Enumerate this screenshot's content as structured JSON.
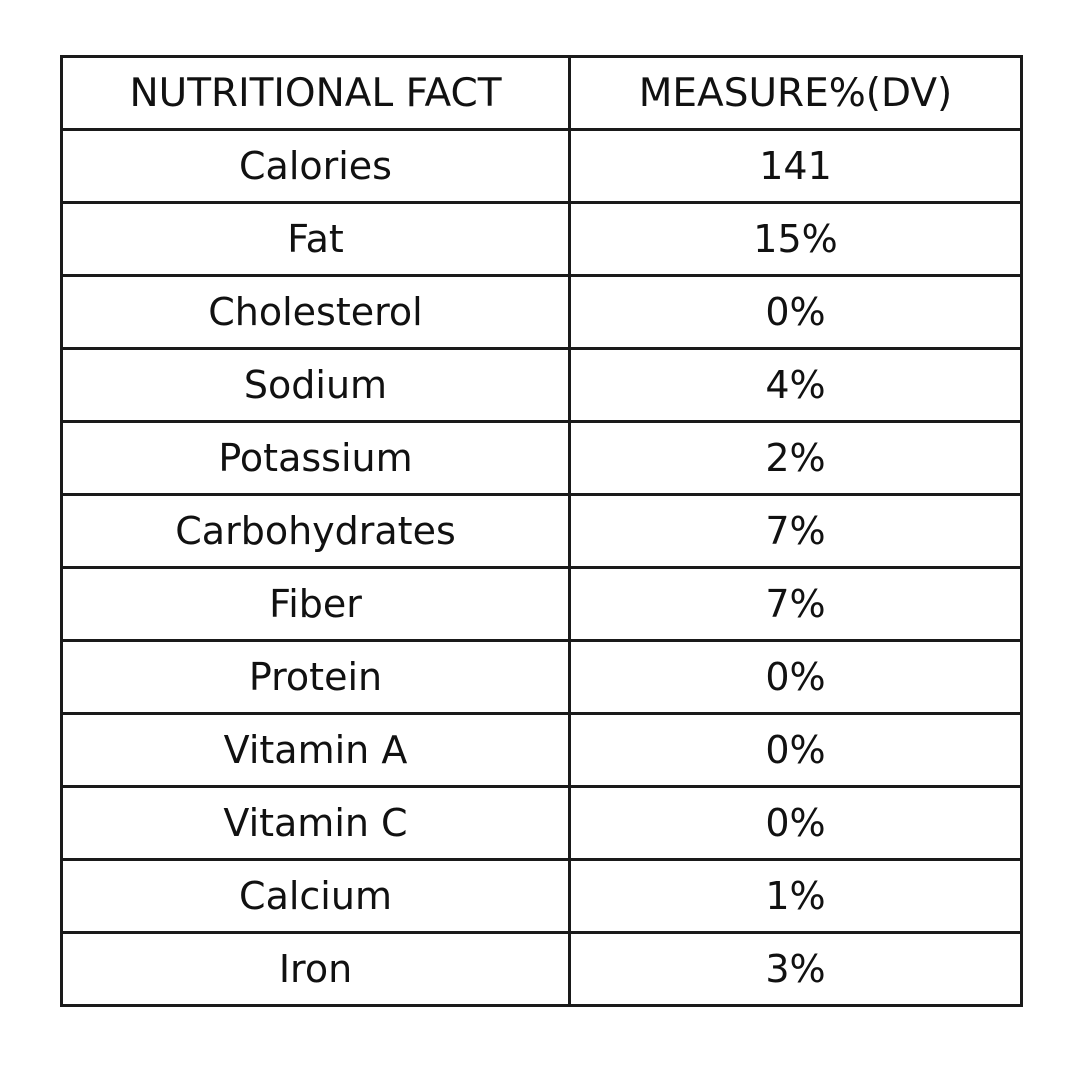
{
  "table": {
    "headers": [
      "NUTRITIONAL FACT",
      "MEASURE%(DV)"
    ],
    "rows": [
      {
        "fact": "Calories",
        "measure": "141"
      },
      {
        "fact": "Fat",
        "measure": "15%"
      },
      {
        "fact": "Cholesterol",
        "measure": "0%"
      },
      {
        "fact": "Sodium",
        "measure": "4%"
      },
      {
        "fact": "Potassium",
        "measure": "2%"
      },
      {
        "fact": "Carbohydrates",
        "measure": "7%"
      },
      {
        "fact": "Fiber",
        "measure": "7%"
      },
      {
        "fact": "Protein",
        "measure": "0%"
      },
      {
        "fact": "Vitamin A",
        "measure": "0%"
      },
      {
        "fact": "Vitamin C",
        "measure": "0%"
      },
      {
        "fact": "Calcium",
        "measure": "1%"
      },
      {
        "fact": "Iron",
        "measure": "3%"
      }
    ]
  },
  "colors": {
    "border": "#1a1a1a",
    "text": "#111111",
    "background": "#ffffff"
  }
}
